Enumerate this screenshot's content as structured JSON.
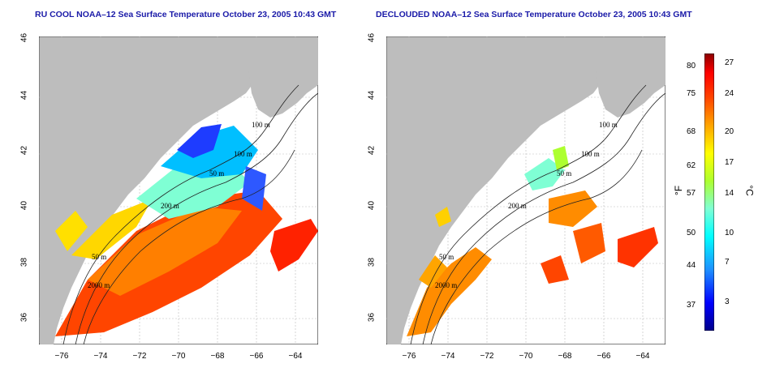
{
  "left_panel": {
    "title": "RU COOL NOAA–12 Sea Surface Temperature October 23, 2005 10:43 GMT"
  },
  "right_panel": {
    "title": "DECLOUDED NOAA–12 Sea Surface Temperature October 23, 2005 10:43 GMT"
  },
  "map": {
    "lat_ticks": [
      "46",
      "44",
      "42",
      "40",
      "38",
      "36"
    ],
    "lon_ticks": [
      "−76",
      "−74",
      "−72",
      "−70",
      "−68",
      "−66",
      "−64"
    ],
    "contour_labels": [
      "100 m",
      "100 m",
      "50 m",
      "200 m",
      "50 m",
      "2000 m"
    ],
    "land_color": "#bdbdbd",
    "ocean_color": "#ffffff"
  },
  "colorbar": {
    "fahrenheit_ticks": [
      "80",
      "75",
      "68",
      "62",
      "57",
      "50",
      "44",
      "37"
    ],
    "celsius_ticks": [
      "27",
      "24",
      "20",
      "17",
      "14",
      "10",
      "7",
      "3"
    ],
    "f_unit": "°F",
    "c_unit": "°C",
    "colors": [
      "#00008b",
      "#0000ff",
      "#1e90ff",
      "#00ffff",
      "#7fffd4",
      "#adff2f",
      "#ffff00",
      "#ffa500",
      "#ff4500",
      "#ff0000",
      "#8b0000"
    ]
  }
}
